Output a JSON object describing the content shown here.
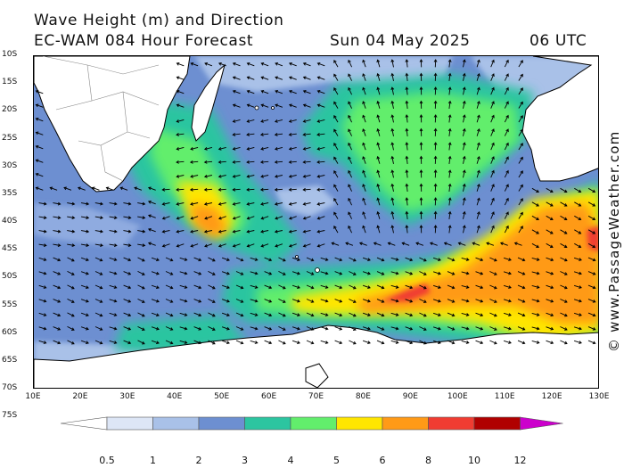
{
  "header": {
    "title": "Wave Height (m) and Direction",
    "model": "EC-WAM 084 Hour Forecast",
    "date": "Sun 04 May 2025",
    "time": "06 UTC"
  },
  "credit": "© www.PassageWeather.com",
  "axes": {
    "lat_labels": [
      "10S",
      "15S",
      "20S",
      "25S",
      "30S",
      "35S",
      "40S",
      "45S",
      "50S",
      "55S",
      "60S",
      "65S",
      "70S",
      "75S"
    ],
    "lon_labels": [
      "10E",
      "20E",
      "30E",
      "40E",
      "50E",
      "60E",
      "70E",
      "80E",
      "90E",
      "100E",
      "110E",
      "120E",
      "130E"
    ]
  },
  "colorbar": {
    "labels": [
      "0.5",
      "1",
      "2",
      "3",
      "4",
      "5",
      "6",
      "8",
      "10",
      "12"
    ],
    "colors": [
      "#ffffff",
      "#dde6f6",
      "#a9c1e8",
      "#6d8fd1",
      "#2cc5a0",
      "#62ee6c",
      "#ffe600",
      "#ff9a17",
      "#f03c32",
      "#b00000",
      "#cc00cc"
    ]
  },
  "colors": {
    "land": "#ffffff",
    "coast": "#000000",
    "arrow": "#000000"
  }
}
